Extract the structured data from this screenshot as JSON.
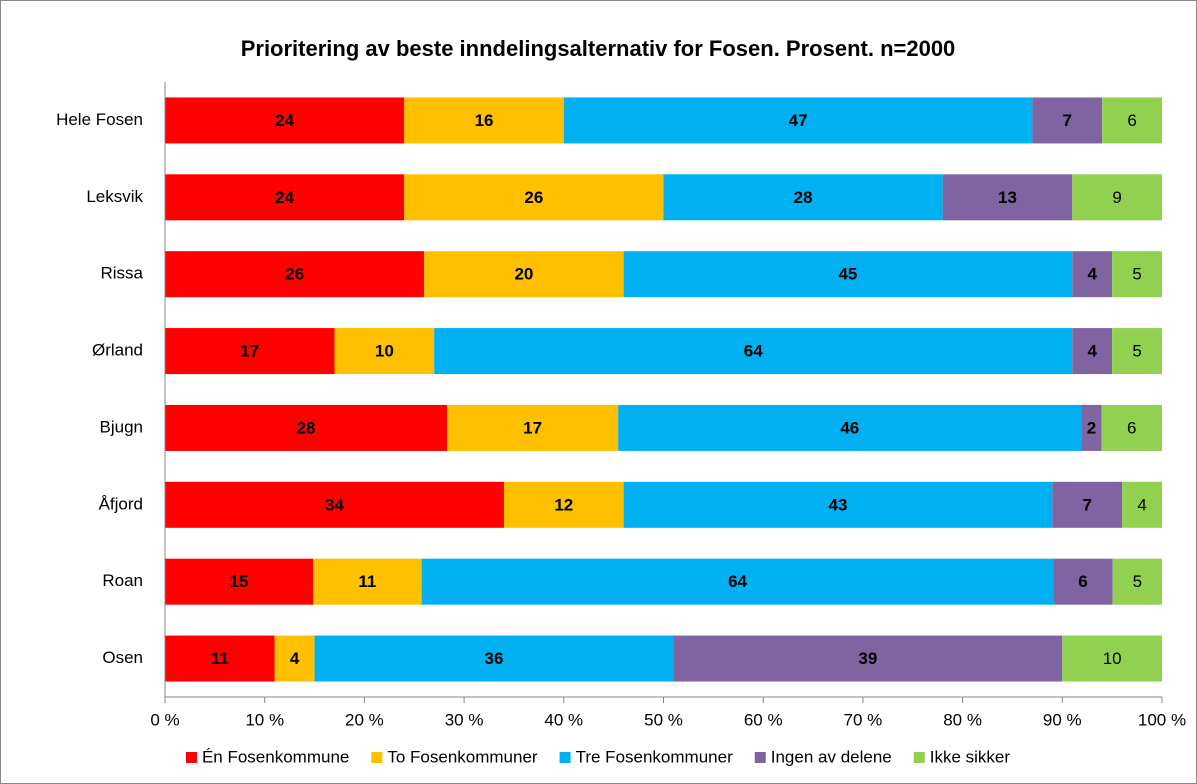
{
  "chart_data": {
    "type": "bar",
    "orientation": "horizontal",
    "stack": "percent",
    "title": "Prioritering av beste inndelingsalternativ for Fosen. Prosent. n=2000",
    "categories": [
      "Hele Fosen",
      "Leksvik",
      "Rissa",
      "Ørland",
      "Bjugn",
      "Åfjord",
      "Roan",
      "Osen"
    ],
    "series": [
      {
        "name": "Én Fosenkommune",
        "color": "#ff0000",
        "values": [
          24,
          24,
          26,
          17,
          28,
          34,
          15,
          11
        ]
      },
      {
        "name": "To Fosenkommuner",
        "color": "#ffc000",
        "values": [
          16,
          26,
          20,
          10,
          17,
          12,
          11,
          4
        ]
      },
      {
        "name": "Tre Fosenkommuner",
        "color": "#00b0f0",
        "values": [
          47,
          28,
          45,
          64,
          46,
          43,
          64,
          36
        ]
      },
      {
        "name": "Ingen av delene",
        "color": "#8064a2",
        "values": [
          7,
          13,
          4,
          4,
          2,
          7,
          6,
          39
        ]
      },
      {
        "name": "Ikke sikker",
        "color": "#92d050",
        "values": [
          6,
          9,
          5,
          5,
          6,
          4,
          5,
          10
        ]
      }
    ],
    "xlim": [
      0,
      100
    ],
    "xticks": [
      {
        "value": 0,
        "label": "0 %"
      },
      {
        "value": 10,
        "label": "10 %"
      },
      {
        "value": 20,
        "label": "20 %"
      },
      {
        "value": 30,
        "label": "30 %"
      },
      {
        "value": 40,
        "label": "40 %"
      },
      {
        "value": 50,
        "label": "50 %"
      },
      {
        "value": 60,
        "label": "60 %"
      },
      {
        "value": 70,
        "label": "70 %"
      },
      {
        "value": 80,
        "label": "80 %"
      },
      {
        "value": 90,
        "label": "90 %"
      },
      {
        "value": 100,
        "label": "100 %"
      }
    ],
    "legend": "bottom"
  }
}
